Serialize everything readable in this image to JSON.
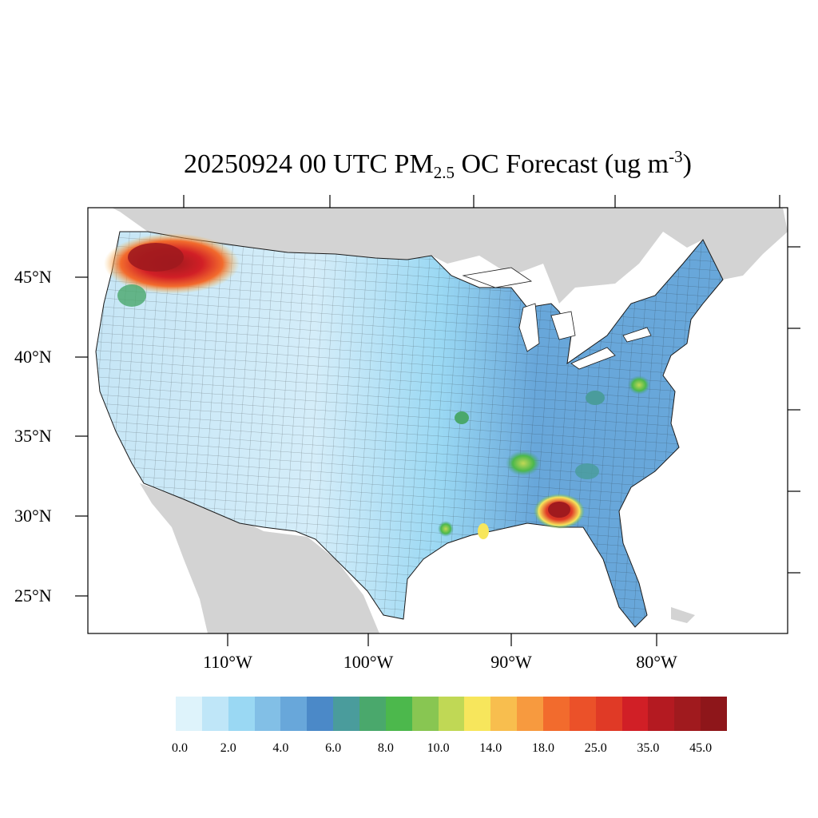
{
  "title": {
    "prefix": "20250924 00 UTC PM",
    "subscript": "2.5",
    "middle": " OC Forecast (ug m",
    "superscript": "-3",
    "suffix": ")"
  },
  "axes": {
    "lat_labels": [
      "45°N",
      "40°N",
      "35°N",
      "30°N",
      "25°N"
    ],
    "lon_labels": [
      "110°W",
      "100°W",
      "90°W",
      "80°W"
    ]
  },
  "colorbar": {
    "colors": [
      "#def3fb",
      "#bfe6f8",
      "#9ad8f3",
      "#82bfe6",
      "#68a7da",
      "#4b89c8",
      "#4a9c9c",
      "#4aa86c",
      "#4cb84c",
      "#88c652",
      "#c0d855",
      "#f7e65c",
      "#f8be4e",
      "#f79a3f",
      "#f26b2d",
      "#eb5129",
      "#e03a26",
      "#d11f26",
      "#b41a21",
      "#a01a1e",
      "#8e161a"
    ],
    "tick_labels": [
      "0.0",
      "2.0",
      "4.0",
      "6.0",
      "8.0",
      "10.0",
      "14.0",
      "18.0",
      "25.0",
      "35.0",
      "45.0"
    ]
  },
  "map_colors": {
    "land_outside": "#d3d3d3",
    "water": "#ffffff",
    "county_lines": "#1a1a1a"
  },
  "hotspots": [
    {
      "region": "Pacific Northwest (WA/OR/ID)",
      "level": "35.0-45.0+",
      "color": "#a01a1e"
    },
    {
      "region": "Mississippi / Alabama",
      "level": "14.0-45.0",
      "color": "#d11f26"
    },
    {
      "region": "Louisiana / Texas border",
      "level": "8.0-14.0",
      "color": "#4aa86c"
    },
    {
      "region": "Virginia / West Virginia",
      "level": "6.0-10.0",
      "color": "#4a9c9c"
    }
  ]
}
